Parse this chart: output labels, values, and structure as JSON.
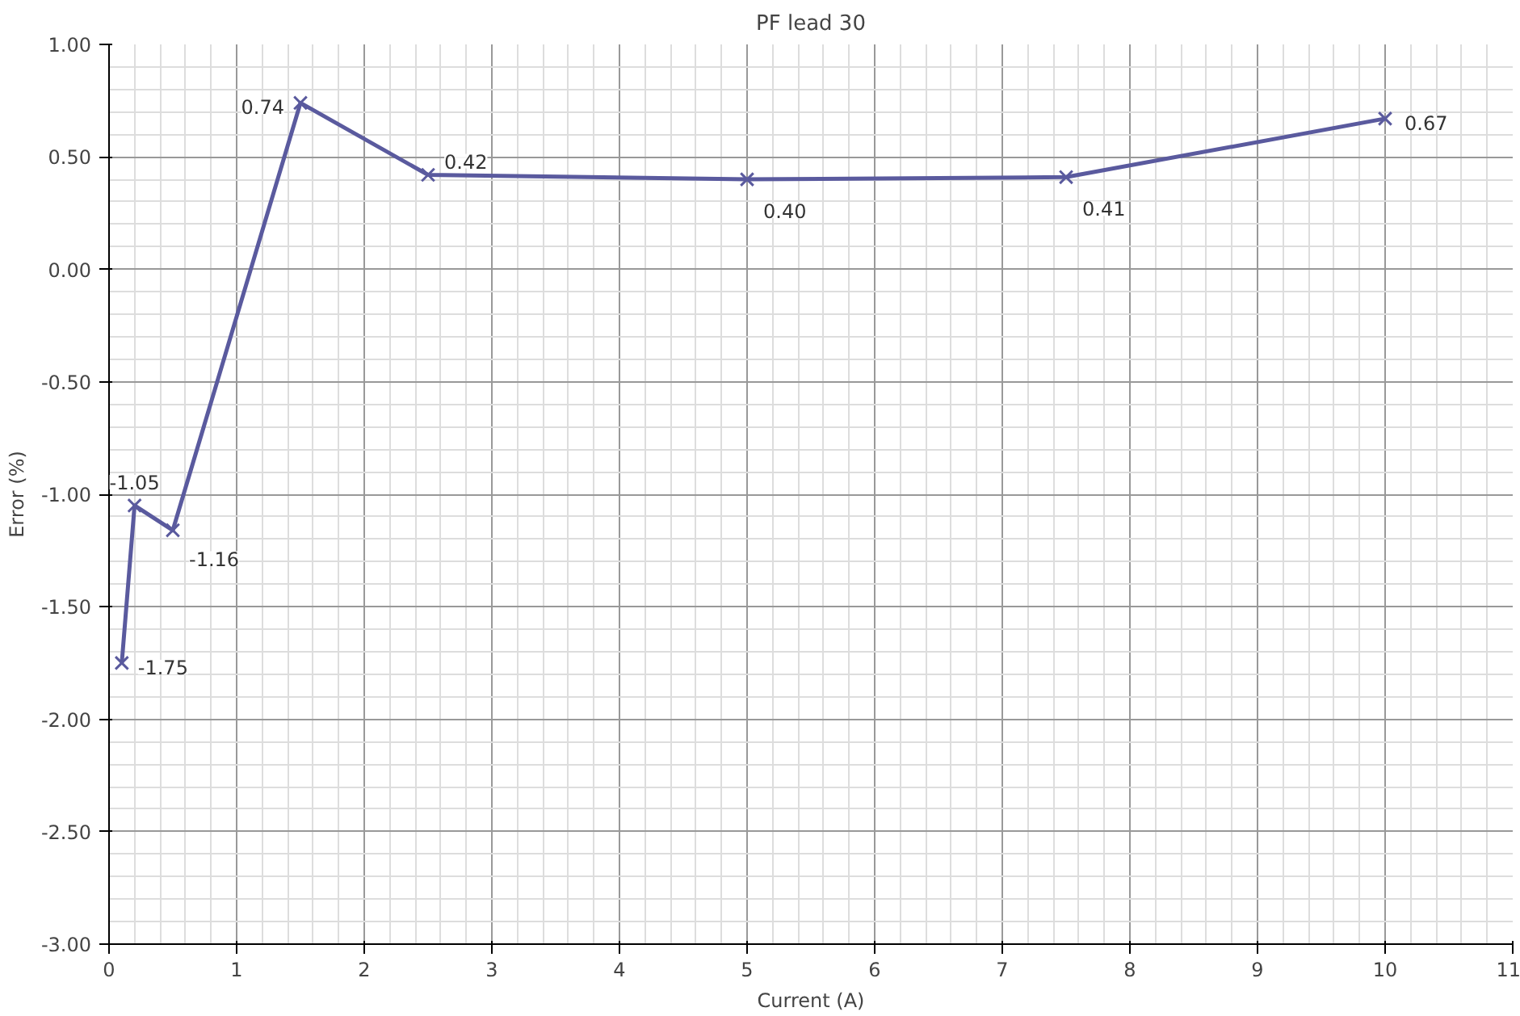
{
  "chart_data": {
    "type": "line",
    "title": "PF lead 30",
    "xlabel": "Current (A)",
    "ylabel": "Error (%)",
    "x": [
      0.1,
      0.2,
      0.5,
      1.5,
      2.5,
      5,
      7.5,
      10
    ],
    "series": [
      {
        "color": "#5a5a9e",
        "values": [
          -1.75,
          -1.05,
          -1.16,
          0.74,
          0.42,
          0.4,
          0.41,
          0.67
        ],
        "value_labels": [
          "-1.75",
          "-1.05",
          "-1.16",
          "0.74",
          "0.42",
          "0.40",
          "0.41",
          "0.67"
        ]
      }
    ],
    "xlim": [
      0,
      11
    ],
    "xticks": [
      0,
      1,
      2,
      3,
      4,
      5,
      6,
      7,
      8,
      9,
      10,
      11
    ],
    "ylim": [
      -3,
      1
    ],
    "yticks": [
      {
        "value": -3,
        "label": "-3.00"
      },
      {
        "value": -2.5,
        "label": "-2.50"
      },
      {
        "value": -2,
        "label": "-2.00"
      },
      {
        "value": -1.5,
        "label": "-1.50"
      },
      {
        "value": -1,
        "label": "-1.00"
      },
      {
        "value": -0.5,
        "label": "-0.50"
      },
      {
        "value": 0,
        "label": "0.00"
      },
      {
        "value": 0.5,
        "label": "0.50"
      },
      {
        "value": 1,
        "label": "1.00"
      }
    ],
    "grid": true,
    "marker": "cross",
    "line_style": "solid"
  }
}
